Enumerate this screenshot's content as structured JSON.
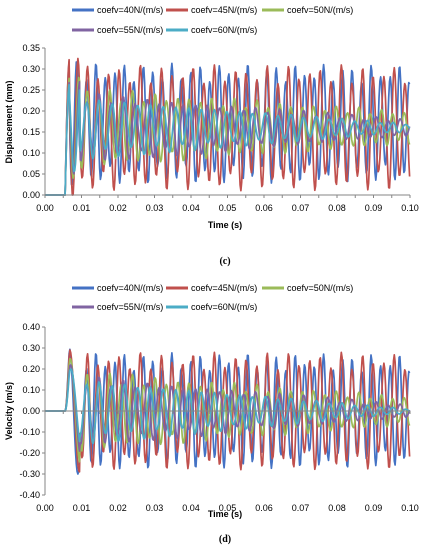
{
  "colors": {
    "coefv=40N/(m/s)": "#4472C4",
    "coefv=45N/(m/s)": "#C0504D",
    "coefv=50N/(m/s)": "#9BBB59",
    "coefv=55N/(m/s)": "#8064A2",
    "coefv=60N/(m/s)": "#4BACC6"
  },
  "chart_data": [
    {
      "type": "line",
      "caption": "(c)",
      "xlabel": "Time (s)",
      "ylabel": "Displacement (mm)",
      "xlim": [
        0.0,
        0.1
      ],
      "ylim": [
        0.0,
        0.35
      ],
      "x_ticks": [
        "0.00",
        "0.01",
        "0.01",
        "0.02",
        "0.02",
        "0.03",
        "0.03",
        "0.04",
        "0.04",
        "0.05",
        "0.05",
        "0.06",
        "0.06",
        "0.07",
        "0.07",
        "0.08",
        "0.08",
        "0.09",
        "0.09",
        "0.10",
        "0.10"
      ],
      "y_ticks": [
        "0.00",
        "0.05",
        "0.10",
        "0.15",
        "0.20",
        "0.25",
        "0.30",
        "0.35"
      ],
      "legend": [
        "coefv=40N/(m/s)",
        "coefv=45N/(m/s)",
        "coefv=50N/(m/s)",
        "coefv=55N/(m/s)",
        "coefv=60N/(m/s)"
      ],
      "grid": false,
      "legend_position": "top",
      "onset_time": 0.0055,
      "series": [
        {
          "name": "coefv=40N/(m/s)",
          "center": 0.17,
          "amplitude": 0.145,
          "final_amplitude": 0.14,
          "period": 0.0026,
          "peak": 0.32
        },
        {
          "name": "coefv=45N/(m/s)",
          "center": 0.16,
          "amplitude": 0.15,
          "final_amplitude": 0.15,
          "period": 0.0029,
          "peak": 0.325
        },
        {
          "name": "coefv=50N/(m/s)",
          "center": 0.16,
          "amplitude": 0.1,
          "final_amplitude": 0.04,
          "period": 0.0031,
          "peak": 0.28
        },
        {
          "name": "coefv=55N/(m/s)",
          "center": 0.16,
          "amplitude": 0.09,
          "final_amplitude": 0.02,
          "period": 0.0033,
          "peak": 0.27
        },
        {
          "name": "coefv=60N/(m/s)",
          "center": 0.16,
          "amplitude": 0.08,
          "final_amplitude": 0.01,
          "period": 0.0035,
          "peak": 0.265
        }
      ]
    },
    {
      "type": "line",
      "caption": "(d)",
      "xlabel": "Time (s)",
      "ylabel": "Velocity (m/s)",
      "xlim": [
        0.0,
        0.1
      ],
      "ylim": [
        -0.4,
        0.4
      ],
      "x_ticks": [
        "0.00",
        "0.01",
        "0.01",
        "0.02",
        "0.02",
        "0.03",
        "0.03",
        "0.04",
        "0.04",
        "0.05",
        "0.05",
        "0.06",
        "0.06",
        "0.07",
        "0.07",
        "0.08",
        "0.08",
        "0.09",
        "0.09",
        "0.10",
        "0.10"
      ],
      "y_ticks": [
        "0.40",
        "0.30",
        "0.20",
        "0.10",
        "0.00",
        "-0.10",
        "-0.20",
        "-0.30",
        "-0.40"
      ],
      "legend": [
        "coefv=40N/(m/s)",
        "coefv=45N/(m/s)",
        "coefv=50N/(m/s)",
        "coefv=55N/(m/s)",
        "coefv=60N/(m/s)"
      ],
      "grid": false,
      "legend_position": "top",
      "onset_time": 0.0055,
      "series": [
        {
          "name": "coefv=40N/(m/s)",
          "center": 0.0,
          "amplitude": 0.28,
          "final_amplitude": 0.27,
          "period": 0.0026,
          "peak": 0.3
        },
        {
          "name": "coefv=45N/(m/s)",
          "center": 0.0,
          "amplitude": 0.28,
          "final_amplitude": 0.28,
          "period": 0.0029,
          "peak": 0.29
        },
        {
          "name": "coefv=50N/(m/s)",
          "center": 0.0,
          "amplitude": 0.2,
          "final_amplitude": 0.07,
          "period": 0.0031,
          "peak": 0.25
        },
        {
          "name": "coefv=55N/(m/s)",
          "center": 0.0,
          "amplitude": 0.18,
          "final_amplitude": 0.03,
          "period": 0.0033,
          "peak": 0.22
        },
        {
          "name": "coefv=60N/(m/s)",
          "center": 0.0,
          "amplitude": 0.17,
          "final_amplitude": 0.01,
          "period": 0.0035,
          "peak": 0.2
        }
      ]
    }
  ]
}
